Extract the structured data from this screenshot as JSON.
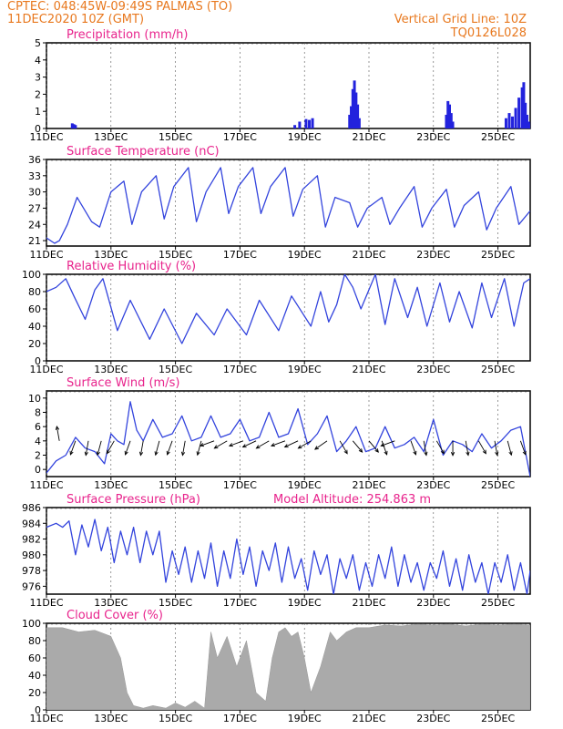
{
  "header": {
    "line1": "CPTEC:   048:45W-09:49S   PALMAS (TO)",
    "line2": "11DEC2020 10Z (GMT)",
    "grid_note": "Vertical Grid Line: 10Z",
    "code": "TQ0126L028"
  },
  "x_ticks": [
    "11DEC",
    "13DEC",
    "15DEC",
    "17DEC",
    "19DEC",
    "21DEC",
    "23DEC",
    "25DEC"
  ],
  "x_ticks_days": [
    0,
    2,
    4,
    6,
    8,
    10,
    12,
    14
  ],
  "x_range_days": [
    0,
    15
  ],
  "colors": {
    "line": "#3344dd",
    "bar": "#2222dd",
    "cloud": "#aaaaaa",
    "header": "#e8781e",
    "title": "#e8238c"
  },
  "chart_data": [
    {
      "type": "bar",
      "title": "Precipitation (mm/h)",
      "ylim": [
        0,
        5
      ],
      "yticks": [
        0,
        1,
        2,
        3,
        4,
        5
      ],
      "x_unit": "days since 11DEC 10Z",
      "x": [
        0.8,
        0.85,
        0.9,
        7.7,
        7.85,
        8.05,
        8.15,
        8.25,
        9.4,
        9.45,
        9.5,
        9.55,
        9.6,
        9.65,
        9.7,
        12.4,
        12.45,
        12.5,
        12.55,
        12.6,
        14.25,
        14.35,
        14.45,
        14.55,
        14.65,
        14.75,
        14.8,
        14.85,
        14.9,
        14.95,
        15.0
      ],
      "values": [
        0.3,
        0.25,
        0.2,
        0.2,
        0.4,
        0.55,
        0.5,
        0.6,
        0.8,
        1.3,
        2.3,
        2.8,
        2.1,
        1.4,
        0.6,
        0.8,
        1.6,
        1.4,
        0.9,
        0.4,
        0.6,
        0.9,
        0.7,
        1.2,
        1.8,
        2.4,
        2.7,
        1.5,
        0.8,
        0.4,
        0.3
      ]
    },
    {
      "type": "line",
      "title": "Surface Temperature (nC)",
      "ylim": [
        20,
        36
      ],
      "yticks": [
        21,
        24,
        27,
        30,
        33,
        36
      ],
      "x_unit": "days since 11DEC 10Z",
      "x": [
        0,
        0.25,
        0.4,
        0.65,
        0.95,
        1.4,
        1.65,
        2.0,
        2.4,
        2.65,
        2.95,
        3.4,
        3.65,
        3.95,
        4.4,
        4.65,
        4.95,
        5.4,
        5.65,
        5.95,
        6.4,
        6.65,
        6.95,
        7.4,
        7.65,
        7.95,
        8.4,
        8.65,
        8.95,
        9.4,
        9.65,
        9.95,
        10.4,
        10.65,
        10.95,
        11.4,
        11.65,
        11.95,
        12.4,
        12.65,
        12.95,
        13.4,
        13.65,
        13.95,
        14.4,
        14.65,
        15.0
      ],
      "values": [
        21.5,
        20.5,
        21.0,
        24,
        29,
        24.5,
        23.5,
        30,
        32,
        24,
        30,
        33,
        25,
        31,
        34.5,
        24.5,
        30,
        34.5,
        26,
        31,
        34.5,
        26,
        31,
        34.5,
        25.5,
        30.5,
        33,
        23.5,
        29,
        28,
        23.5,
        27,
        29,
        24,
        27,
        31,
        23.5,
        27,
        30.5,
        23.5,
        27.5,
        30,
        23,
        27,
        31,
        24,
        26.5
      ]
    },
    {
      "type": "line",
      "title": "Relative Humidity (%)",
      "ylim": [
        0,
        100
      ],
      "yticks": [
        0,
        20,
        40,
        60,
        80,
        100
      ],
      "x_unit": "days since 11DEC 10Z",
      "x": [
        0,
        0.3,
        0.6,
        0.85,
        1.2,
        1.5,
        1.75,
        2.2,
        2.6,
        3.2,
        3.65,
        4.2,
        4.65,
        5.2,
        5.6,
        6.2,
        6.6,
        7.2,
        7.6,
        8.2,
        8.5,
        8.75,
        9.0,
        9.25,
        9.5,
        9.75,
        10.2,
        10.5,
        10.8,
        11.2,
        11.5,
        11.8,
        12.2,
        12.5,
        12.8,
        13.2,
        13.5,
        13.8,
        14.2,
        14.5,
        14.8,
        15.0
      ],
      "values": [
        80,
        85,
        95,
        75,
        48,
        82,
        95,
        35,
        70,
        25,
        60,
        20,
        55,
        30,
        60,
        30,
        70,
        35,
        75,
        40,
        80,
        45,
        65,
        100,
        85,
        60,
        100,
        42,
        95,
        50,
        85,
        40,
        90,
        45,
        80,
        38,
        90,
        50,
        95,
        40,
        90,
        95
      ]
    },
    {
      "type": "line",
      "title": "Surface Wind (m/s)",
      "ylim": [
        -1,
        11
      ],
      "yticks": [
        0,
        2,
        4,
        6,
        8,
        10
      ],
      "x_unit": "days since 11DEC 10Z",
      "x": [
        0,
        0.3,
        0.6,
        0.9,
        1.2,
        1.5,
        1.8,
        2.0,
        2.2,
        2.4,
        2.6,
        2.8,
        3.0,
        3.3,
        3.6,
        3.9,
        4.2,
        4.5,
        4.8,
        5.1,
        5.4,
        5.7,
        6.0,
        6.3,
        6.6,
        6.9,
        7.2,
        7.5,
        7.8,
        8.1,
        8.4,
        8.7,
        9.0,
        9.3,
        9.6,
        9.9,
        10.2,
        10.5,
        10.8,
        11.1,
        11.4,
        11.7,
        12.0,
        12.3,
        12.6,
        12.9,
        13.2,
        13.5,
        13.8,
        14.1,
        14.4,
        14.7,
        15.0
      ],
      "values": [
        -0.5,
        1.2,
        2.0,
        4.5,
        3.0,
        2.5,
        0.8,
        5.0,
        4.0,
        3.5,
        9.5,
        5.5,
        4.0,
        7.0,
        4.5,
        5.0,
        7.5,
        4.0,
        4.5,
        7.5,
        4.5,
        5.0,
        7.0,
        4.0,
        4.5,
        8.0,
        4.5,
        5.0,
        8.5,
        3.5,
        5.0,
        7.5,
        2.5,
        4.0,
        6.0,
        2.5,
        3.0,
        6.0,
        3.0,
        3.5,
        4.5,
        2.5,
        7.0,
        2.0,
        4.0,
        3.5,
        2.5,
        5.0,
        3.0,
        4.0,
        5.5,
        6.0,
        -1.0
      ],
      "vectors_x": [
        0.4,
        0.9,
        1.3,
        1.7,
        2.1,
        2.6,
        3.0,
        3.5,
        3.9,
        4.3,
        4.8,
        5.2,
        5.6,
        6.1,
        6.5,
        6.9,
        7.4,
        7.8,
        8.2,
        8.7,
        9.1,
        9.5,
        10.0,
        10.4,
        10.8,
        11.3,
        11.7,
        12.1,
        12.6,
        13.0,
        13.4,
        13.9,
        14.3,
        14.7
      ],
      "vectors_deg": [
        100,
        250,
        260,
        255,
        240,
        250,
        260,
        255,
        250,
        260,
        255,
        200,
        210,
        200,
        205,
        210,
        200,
        205,
        210,
        215,
        300,
        310,
        310,
        290,
        200,
        290,
        280,
        300,
        270,
        280,
        300,
        280,
        285,
        290
      ]
    },
    {
      "type": "line",
      "title": "Surface Pressure (hPa)",
      "annotation": "Model Altitude: 254.863 m",
      "ylim": [
        975,
        986
      ],
      "yticks": [
        976,
        978,
        980,
        982,
        984,
        986
      ],
      "x_unit": "days since 11DEC 10Z",
      "x": [
        0,
        0.3,
        0.5,
        0.7,
        0.9,
        1.1,
        1.3,
        1.5,
        1.7,
        1.9,
        2.1,
        2.3,
        2.5,
        2.7,
        2.9,
        3.1,
        3.3,
        3.5,
        3.7,
        3.9,
        4.1,
        4.3,
        4.5,
        4.7,
        4.9,
        5.1,
        5.3,
        5.5,
        5.7,
        5.9,
        6.1,
        6.3,
        6.5,
        6.7,
        6.9,
        7.1,
        7.3,
        7.5,
        7.7,
        7.9,
        8.1,
        8.3,
        8.5,
        8.7,
        8.9,
        9.1,
        9.3,
        9.5,
        9.7,
        9.9,
        10.1,
        10.3,
        10.5,
        10.7,
        10.9,
        11.1,
        11.3,
        11.5,
        11.7,
        11.9,
        12.1,
        12.3,
        12.5,
        12.7,
        12.9,
        13.1,
        13.3,
        13.5,
        13.7,
        13.9,
        14.1,
        14.3,
        14.5,
        14.7,
        14.9,
        15.0
      ],
      "values": [
        983.5,
        984.0,
        983.5,
        984.3,
        980.0,
        983.8,
        981.0,
        984.5,
        980.5,
        983.5,
        979.0,
        983.0,
        980.0,
        983.5,
        979.0,
        983.0,
        980.0,
        983.0,
        976.5,
        980.5,
        977.5,
        981.0,
        976.5,
        980.5,
        977.0,
        981.5,
        976.0,
        980.5,
        977.0,
        982.0,
        977.5,
        981.0,
        976.0,
        980.5,
        978.0,
        981.5,
        976.5,
        981.0,
        977.0,
        979.5,
        975.5,
        980.5,
        977.5,
        980.0,
        975.0,
        979.5,
        977.0,
        980.0,
        975.5,
        979.0,
        976.0,
        980.0,
        977.0,
        981.0,
        976.0,
        980.0,
        976.5,
        979.0,
        975.5,
        979.0,
        977.0,
        980.5,
        976.0,
        979.5,
        975.5,
        980.0,
        976.5,
        979.0,
        975.0,
        979.0,
        976.5,
        980.0,
        975.5,
        979.0,
        975.0,
        978.0
      ]
    },
    {
      "type": "area",
      "title": "Cloud Cover (%)",
      "ylim": [
        0,
        100
      ],
      "yticks": [
        0,
        20,
        40,
        60,
        80,
        100
      ],
      "x_unit": "days since 11DEC 10Z",
      "x": [
        0,
        0.5,
        1.0,
        1.5,
        2.0,
        2.3,
        2.5,
        2.7,
        3.0,
        3.3,
        3.7,
        4.0,
        4.3,
        4.6,
        4.9,
        5.1,
        5.3,
        5.6,
        5.9,
        6.2,
        6.5,
        6.8,
        7.0,
        7.2,
        7.4,
        7.6,
        7.8,
        8.0,
        8.2,
        8.5,
        8.8,
        9.0,
        9.3,
        9.6,
        10.0,
        10.5,
        11.0,
        11.5,
        12.0,
        12.5,
        13.0,
        13.5,
        14.0,
        14.5,
        15.0
      ],
      "values": [
        95,
        95,
        90,
        92,
        85,
        60,
        20,
        5,
        2,
        5,
        2,
        8,
        3,
        10,
        2,
        90,
        60,
        85,
        50,
        80,
        20,
        10,
        60,
        90,
        95,
        85,
        90,
        60,
        20,
        50,
        90,
        80,
        90,
        95,
        95,
        98,
        97,
        99,
        98,
        99,
        97,
        99,
        98,
        99,
        98
      ]
    }
  ]
}
